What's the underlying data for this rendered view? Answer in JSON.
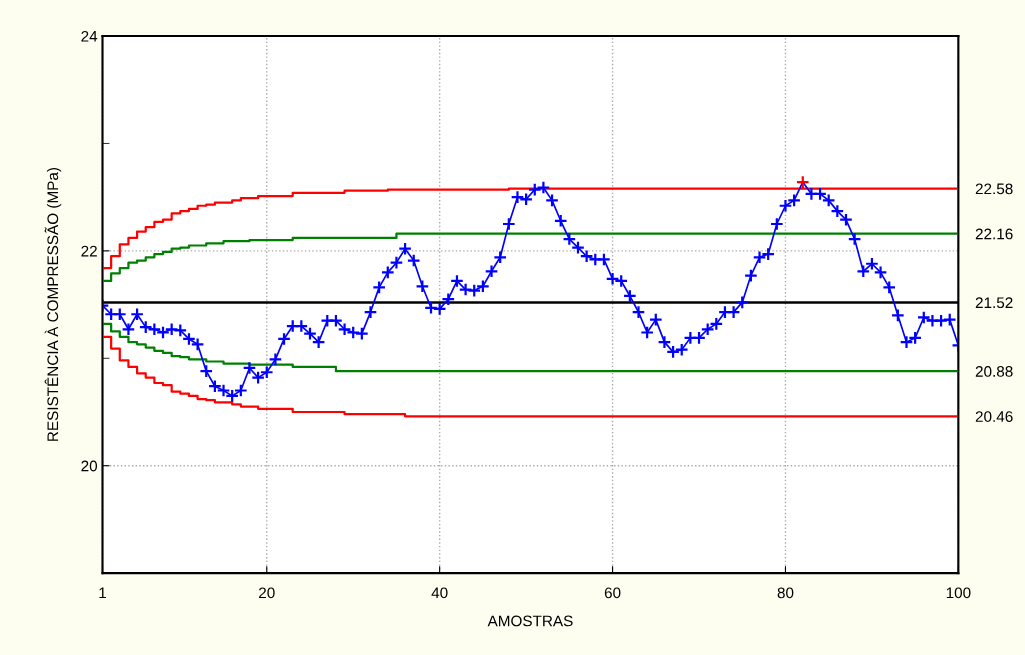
{
  "chart_data": {
    "type": "line",
    "xlabel": "AMOSTRAS",
    "ylabel": "RESISTÊNCIA À COMPRESSÃO (MPa)",
    "xlim": [
      1,
      100
    ],
    "xticks": [
      1,
      20,
      40,
      60,
      80,
      100
    ],
    "ylim": [
      19,
      24
    ],
    "yticks": [
      {
        "value": 20,
        "label": "20"
      },
      {
        "value": 21,
        "label": null
      },
      {
        "value": 22,
        "label": "22"
      },
      {
        "value": 23,
        "label": null
      },
      {
        "value": 24,
        "label": "24"
      }
    ],
    "y2lim": [
      19,
      24
    ],
    "y2ticks": [
      {
        "value": 22.58,
        "label": "22.58"
      },
      {
        "value": 22.16,
        "label": "22.16"
      },
      {
        "value": 21.52,
        "label": "21.52"
      },
      {
        "value": 20.88,
        "label": "20.88"
      },
      {
        "value": 20.46,
        "label": "20.46"
      }
    ],
    "grid": true,
    "ref_lines": [
      {
        "axis": "y",
        "value": 21.52,
        "color": "#000000"
      }
    ],
    "series": [
      {
        "type": "step",
        "color": "#ff0000",
        "marker": "none",
        "x": [
          1,
          2,
          3,
          4,
          5,
          6,
          7,
          8,
          9,
          10,
          11,
          12,
          13,
          14,
          16,
          17,
          19,
          23,
          29,
          34,
          48,
          100
        ],
        "values": [
          21.84,
          21.95,
          22.06,
          22.12,
          22.18,
          22.22,
          22.27,
          22.29,
          22.35,
          22.37,
          22.39,
          22.42,
          22.43,
          22.45,
          22.47,
          22.49,
          22.51,
          22.54,
          22.56,
          22.57,
          22.58,
          22.58
        ]
      },
      {
        "type": "step",
        "color": "#008000",
        "marker": "none",
        "x": [
          1,
          2,
          3,
          4,
          5,
          6,
          7,
          8,
          9,
          10,
          11,
          13,
          15,
          18,
          23,
          35,
          100
        ],
        "values": [
          21.72,
          21.79,
          21.84,
          21.89,
          21.91,
          21.94,
          21.97,
          21.99,
          22.02,
          22.03,
          22.05,
          22.07,
          22.09,
          22.1,
          22.12,
          22.16,
          22.16
        ]
      },
      {
        "type": "step",
        "color": "#008000",
        "marker": "none",
        "x": [
          1,
          2,
          3,
          4,
          5,
          6,
          7,
          8,
          9,
          10,
          11,
          13,
          15,
          18,
          23,
          28,
          100
        ],
        "values": [
          21.32,
          21.25,
          21.2,
          21.15,
          21.13,
          21.1,
          21.07,
          21.05,
          21.02,
          21.01,
          20.99,
          20.97,
          20.95,
          20.94,
          20.92,
          20.88,
          20.88
        ]
      },
      {
        "type": "step",
        "color": "#ff0000",
        "marker": "none",
        "x": [
          1,
          2,
          3,
          4,
          5,
          6,
          7,
          8,
          9,
          10,
          11,
          12,
          13,
          14,
          16,
          17,
          19,
          23,
          29,
          36,
          100
        ],
        "values": [
          21.2,
          21.09,
          20.98,
          20.92,
          20.86,
          20.82,
          20.77,
          20.75,
          20.69,
          20.67,
          20.65,
          20.62,
          20.61,
          20.59,
          20.57,
          20.55,
          20.53,
          20.5,
          20.48,
          20.46,
          20.46
        ]
      },
      {
        "color": "#0000ff",
        "marker": "cross",
        "x": [
          1,
          2,
          3,
          4,
          5,
          6,
          7,
          8,
          9,
          10,
          11,
          12,
          13,
          14,
          15,
          16,
          17,
          18,
          19,
          20,
          21,
          22,
          23,
          24,
          25,
          26,
          27,
          28,
          29,
          30,
          31,
          32,
          33,
          34,
          35,
          36,
          37,
          38,
          39,
          40,
          41,
          42,
          43,
          44,
          45,
          46,
          47,
          48,
          49,
          50,
          51,
          52,
          53,
          54,
          55,
          56,
          57,
          58,
          59,
          60,
          61,
          62,
          63,
          64,
          65,
          66,
          67,
          68,
          69,
          70,
          71,
          72,
          73,
          74,
          75,
          76,
          77,
          78,
          79,
          80,
          81,
          82,
          83,
          84,
          85,
          86,
          87,
          88,
          89,
          90,
          91,
          92,
          93,
          94,
          95,
          96,
          97,
          98,
          99,
          100
        ],
        "values": [
          21.49,
          21.41,
          21.41,
          21.27,
          21.41,
          21.29,
          21.27,
          21.24,
          21.27,
          21.26,
          21.18,
          21.13,
          20.88,
          20.74,
          20.7,
          20.65,
          20.7,
          20.91,
          20.82,
          20.87,
          20.99,
          21.18,
          21.3,
          21.3,
          21.23,
          21.15,
          21.35,
          21.35,
          21.27,
          21.24,
          21.23,
          21.43,
          21.66,
          21.8,
          21.89,
          22.02,
          21.91,
          21.67,
          21.47,
          21.46,
          21.55,
          21.72,
          21.64,
          21.63,
          21.67,
          21.81,
          21.94,
          22.25,
          22.5,
          22.48,
          22.57,
          22.59,
          22.47,
          22.28,
          22.11,
          22.03,
          21.95,
          21.92,
          21.92,
          21.74,
          21.72,
          21.58,
          21.43,
          21.24,
          21.36,
          21.15,
          21.06,
          21.08,
          21.19,
          21.19,
          21.27,
          21.32,
          21.43,
          21.43,
          21.52,
          21.77,
          21.94,
          21.97,
          22.25,
          22.42,
          22.47,
          22.64,
          22.53,
          22.53,
          22.47,
          22.37,
          22.29,
          22.11,
          21.81,
          21.88,
          21.8,
          21.66,
          21.4,
          21.15,
          21.19,
          21.38,
          21.35,
          21.35,
          21.36,
          21.12
        ],
        "colors": [
          "#0000ff",
          "#0000ff",
          "#0000ff",
          "#0000ff",
          "#0000ff",
          "#0000ff",
          "#0000ff",
          "#0000ff",
          "#0000ff",
          "#0000ff",
          "#0000ff",
          "#0000ff",
          "#0000ff",
          "#0000ff",
          "#0000ff",
          "#0000ff",
          "#0000ff",
          "#0000ff",
          "#0000ff",
          "#0000ff",
          "#0000ff",
          "#0000ff",
          "#0000ff",
          "#0000ff",
          "#0000ff",
          "#0000ff",
          "#0000ff",
          "#0000ff",
          "#0000ff",
          "#0000ff",
          "#0000ff",
          "#0000ff",
          "#0000ff",
          "#0000ff",
          "#0000ff",
          "#0000ff",
          "#0000ff",
          "#0000ff",
          "#0000ff",
          "#0000ff",
          "#0000ff",
          "#0000ff",
          "#0000ff",
          "#0000ff",
          "#0000ff",
          "#0000ff",
          "#0000ff",
          "#0000ff",
          "#0000ff",
          "#0000ff",
          "#0000ff",
          "#0000ff",
          "#0000ff",
          "#0000ff",
          "#0000ff",
          "#0000ff",
          "#0000ff",
          "#0000ff",
          "#0000ff",
          "#0000ff",
          "#0000ff",
          "#0000ff",
          "#0000ff",
          "#0000ff",
          "#0000ff",
          "#0000ff",
          "#0000ff",
          "#0000ff",
          "#0000ff",
          "#0000ff",
          "#0000ff",
          "#0000ff",
          "#0000ff",
          "#0000ff",
          "#0000ff",
          "#0000ff",
          "#0000ff",
          "#0000ff",
          "#0000ff",
          "#0000ff",
          "#0000ff",
          "#ff0000",
          "#0000ff",
          "#0000ff",
          "#0000ff",
          "#0000ff",
          "#0000ff",
          "#0000ff",
          "#0000ff",
          "#0000ff",
          "#0000ff",
          "#0000ff",
          "#0000ff",
          "#0000ff",
          "#0000ff",
          "#0000ff",
          "#0000ff",
          "#0000ff",
          "#0000ff",
          "#0000ff"
        ]
      }
    ]
  }
}
